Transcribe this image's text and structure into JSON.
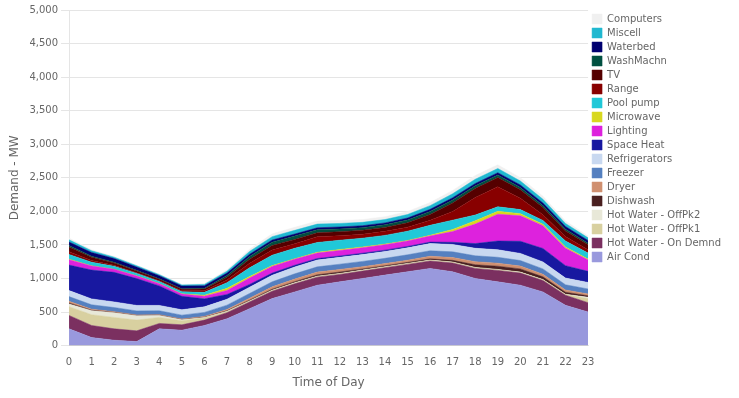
{
  "chart_data": {
    "type": "area",
    "stacked": true,
    "xlabel": "Time of Day",
    "ylabel": "Demand - MW",
    "x": [
      0,
      1,
      2,
      3,
      4,
      5,
      6,
      7,
      8,
      9,
      10,
      11,
      12,
      13,
      14,
      15,
      16,
      17,
      18,
      19,
      20,
      21,
      22,
      23
    ],
    "xlim": [
      0,
      23
    ],
    "xticks": [
      0,
      1,
      2,
      3,
      4,
      5,
      6,
      7,
      8,
      9,
      10,
      11,
      12,
      13,
      14,
      15,
      16,
      17,
      18,
      19,
      20,
      21,
      22,
      23
    ],
    "ylim": [
      0,
      5000
    ],
    "yticks": [
      0,
      500,
      {
        "value": 1000,
        "label": "1,000"
      },
      {
        "value": 1500,
        "label": "1,500"
      },
      {
        "value": 2000,
        "label": "2,000"
      },
      {
        "value": 2500,
        "label": "2,500"
      },
      {
        "value": 3000,
        "label": "3,000"
      },
      {
        "value": 3500,
        "label": "3,500"
      },
      {
        "value": 4000,
        "label": "4,000"
      },
      {
        "value": 4500,
        "label": "4,500"
      },
      {
        "value": 5000,
        "label": "5,000"
      }
    ],
    "grid": "y",
    "legend": "right",
    "series": [
      {
        "name": "Air Cond",
        "color": "#9999dd",
        "values": [
          250,
          120,
          80,
          60,
          250,
          230,
          300,
          400,
          550,
          700,
          800,
          900,
          950,
          1000,
          1050,
          1100,
          1150,
          1100,
          1000,
          950,
          900,
          800,
          600,
          500
        ]
      },
      {
        "name": "Hot Water - On Demnd",
        "color": "#7b3060",
        "values": [
          200,
          180,
          170,
          160,
          80,
          80,
          80,
          90,
          100,
          110,
          120,
          120,
          110,
          110,
          110,
          110,
          110,
          130,
          150,
          170,
          180,
          170,
          150,
          140
        ]
      },
      {
        "name": "Hot Water - OffPk1",
        "color": "#d8d0a0",
        "values": [
          130,
          160,
          170,
          160,
          90,
          60,
          30,
          15,
          10,
          10,
          10,
          10,
          10,
          10,
          10,
          10,
          10,
          10,
          10,
          10,
          10,
          10,
          10,
          60
        ]
      },
      {
        "name": "Hot Water - OffPk2",
        "color": "#e8e8d8",
        "values": [
          40,
          60,
          70,
          65,
          30,
          15,
          8,
          5,
          5,
          5,
          5,
          5,
          5,
          5,
          5,
          5,
          5,
          5,
          5,
          5,
          5,
          5,
          5,
          20
        ]
      },
      {
        "name": "Dishwash",
        "color": "#4a2020",
        "values": [
          15,
          8,
          5,
          4,
          3,
          3,
          5,
          8,
          12,
          15,
          18,
          20,
          22,
          18,
          15,
          15,
          18,
          25,
          40,
          48,
          48,
          40,
          30,
          22
        ]
      },
      {
        "name": "Dryer",
        "color": "#d09070",
        "values": [
          25,
          15,
          10,
          8,
          8,
          8,
          12,
          20,
          30,
          35,
          38,
          40,
          38,
          33,
          32,
          33,
          38,
          42,
          45,
          45,
          42,
          38,
          33,
          28
        ]
      },
      {
        "name": "Freezer",
        "color": "#5580c0",
        "values": [
          70,
          65,
          62,
          60,
          58,
          58,
          60,
          65,
          70,
          75,
          78,
          78,
          78,
          78,
          78,
          80,
          82,
          85,
          88,
          88,
          82,
          80,
          78,
          74
        ]
      },
      {
        "name": "Refrigerators",
        "color": "#c8d8f0",
        "values": [
          90,
          88,
          84,
          82,
          80,
          80,
          83,
          88,
          93,
          98,
          102,
          102,
          102,
          102,
          102,
          104,
          107,
          110,
          112,
          112,
          107,
          104,
          100,
          97
        ]
      },
      {
        "name": "Space Heat",
        "color": "#1818a0",
        "values": [
          380,
          430,
          440,
          400,
          290,
          200,
          120,
          70,
          42,
          32,
          26,
          22,
          20,
          20,
          20,
          20,
          22,
          32,
          70,
          130,
          180,
          200,
          185,
          165
        ]
      },
      {
        "name": "Lighting",
        "color": "#dd22dd",
        "values": [
          80,
          60,
          45,
          38,
          33,
          33,
          38,
          60,
          95,
          100,
          90,
          82,
          82,
          82,
          82,
          82,
          90,
          160,
          290,
          400,
          380,
          340,
          260,
          170
        ]
      },
      {
        "name": "Microwave",
        "color": "#d8d820",
        "values": [
          8,
          4,
          3,
          3,
          3,
          5,
          15,
          32,
          22,
          12,
          8,
          12,
          15,
          12,
          8,
          8,
          12,
          32,
          50,
          42,
          32,
          22,
          18,
          14
        ]
      },
      {
        "name": "Pool pump",
        "color": "#20c8d8",
        "values": [
          70,
          52,
          42,
          35,
          30,
          30,
          42,
          85,
          130,
          155,
          155,
          145,
          138,
          130,
          130,
          138,
          148,
          138,
          85,
          68,
          60,
          55,
          88,
          88
        ]
      },
      {
        "name": "Range",
        "color": "#880000",
        "values": [
          42,
          25,
          16,
          12,
          12,
          16,
          24,
          40,
          68,
          76,
          68,
          85,
          68,
          60,
          60,
          60,
          76,
          130,
          260,
          300,
          170,
          84,
          68,
          50
        ]
      },
      {
        "name": "TV",
        "color": "#550000",
        "values": [
          68,
          50,
          34,
          26,
          20,
          20,
          25,
          42,
          59,
          68,
          64,
          59,
          59,
          59,
          59,
          64,
          85,
          126,
          135,
          135,
          126,
          110,
          84,
          76
        ]
      },
      {
        "name": "WashMachn",
        "color": "#005040",
        "values": [
          25,
          16,
          12,
          8,
          8,
          8,
          12,
          25,
          42,
          50,
          50,
          46,
          42,
          38,
          38,
          42,
          46,
          46,
          42,
          38,
          34,
          29,
          25,
          20
        ]
      },
      {
        "name": "Waterbed",
        "color": "#000070",
        "values": [
          50,
          54,
          54,
          50,
          46,
          42,
          38,
          35,
          33,
          32,
          30,
          29,
          29,
          29,
          29,
          30,
          31,
          32,
          33,
          35,
          37,
          38,
          40,
          43
        ]
      },
      {
        "name": "Miscell",
        "color": "#20b8d0",
        "values": [
          34,
          25,
          20,
          18,
          16,
          16,
          20,
          29,
          42,
          50,
          55,
          55,
          52,
          50,
          50,
          52,
          55,
          59,
          63,
          63,
          59,
          55,
          46,
          38
        ]
      },
      {
        "name": "Computers",
        "color": "#f0f0f0",
        "values": [
          25,
          16,
          12,
          10,
          8,
          8,
          12,
          20,
          33,
          42,
          46,
          46,
          44,
          42,
          42,
          44,
          46,
          50,
          55,
          55,
          50,
          46,
          38,
          29
        ]
      }
    ]
  }
}
